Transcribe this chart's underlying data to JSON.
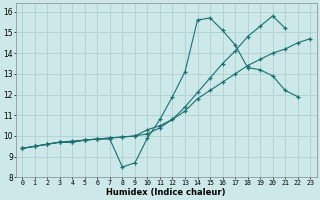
{
  "xlabel": "Humidex (Indice chaleur)",
  "bg_color": "#cce8e8",
  "grid_color": "#aacccc",
  "line_color": "#1a7070",
  "xlim": [
    -0.5,
    23.5
  ],
  "ylim": [
    8,
    16.4
  ],
  "xticks": [
    0,
    1,
    2,
    3,
    4,
    5,
    6,
    7,
    8,
    9,
    10,
    11,
    12,
    13,
    14,
    15,
    16,
    17,
    18,
    19,
    20,
    21,
    22,
    23
  ],
  "yticks": [
    8,
    9,
    10,
    11,
    12,
    13,
    14,
    15,
    16
  ],
  "line1_x": [
    0,
    1,
    2,
    3,
    4,
    5,
    6,
    7,
    8,
    9,
    10,
    11,
    12,
    13,
    14,
    15,
    16,
    17,
    18,
    19,
    20,
    21,
    22,
    23
  ],
  "line1_y": [
    9.4,
    9.5,
    9.6,
    9.7,
    9.75,
    9.8,
    9.85,
    9.9,
    9.95,
    10.0,
    10.3,
    10.5,
    10.8,
    11.2,
    11.8,
    12.2,
    12.6,
    13.0,
    13.4,
    13.7,
    14.0,
    14.2,
    14.5,
    14.7
  ],
  "line2_x": [
    0,
    1,
    2,
    3,
    4,
    5,
    6,
    7,
    8,
    9,
    10,
    11,
    12,
    13,
    14,
    15,
    16,
    17,
    18,
    19,
    20,
    21,
    22
  ],
  "line2_y": [
    9.4,
    9.5,
    9.6,
    9.7,
    9.7,
    9.8,
    9.85,
    9.85,
    8.5,
    8.7,
    9.9,
    10.8,
    11.9,
    13.1,
    15.6,
    15.7,
    15.1,
    14.4,
    13.3,
    13.2,
    12.9,
    12.2,
    11.9
  ],
  "line3_x": [
    0,
    1,
    2,
    3,
    4,
    5,
    6,
    7,
    8,
    9,
    10,
    11,
    12,
    13,
    14,
    15,
    16,
    17,
    18,
    19,
    20,
    21
  ],
  "line3_y": [
    9.4,
    9.5,
    9.6,
    9.7,
    9.7,
    9.8,
    9.85,
    9.9,
    9.95,
    10.0,
    10.1,
    10.4,
    10.8,
    11.4,
    12.1,
    12.8,
    13.5,
    14.1,
    14.8,
    15.3,
    15.8,
    15.2
  ]
}
